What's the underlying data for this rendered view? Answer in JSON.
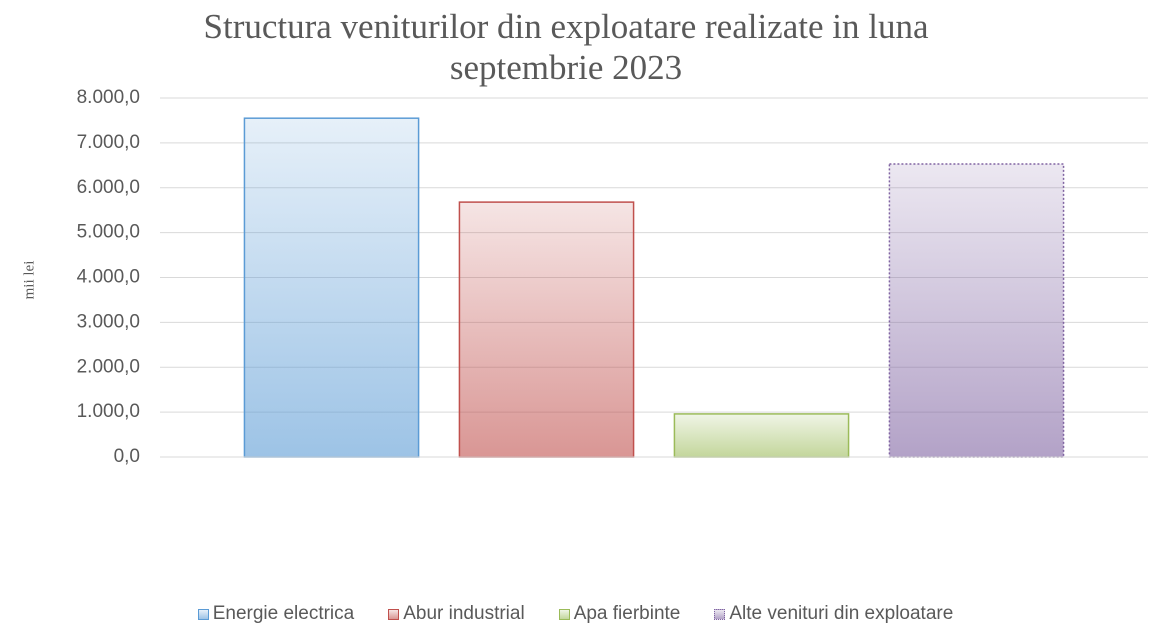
{
  "chart_data": {
    "type": "bar",
    "title": "Structura veniturilor din exploatare realizate in luna septembrie 2023",
    "y_label": "mii lei",
    "categories": [
      null
    ],
    "series": [
      {
        "name": "Energie electrica",
        "color": "#5b9bd5",
        "values": [
          7550
        ]
      },
      {
        "name": "Abur industrial",
        "color": "#c0504d",
        "values": [
          5680
        ]
      },
      {
        "name": "Apa fierbinte",
        "color": "#9bbb59",
        "values": [
          960
        ]
      },
      {
        "name": "Alte venituri din exploatare",
        "color": "#8064a2",
        "values": [
          6530
        ]
      }
    ],
    "ylim": [
      0,
      8000
    ],
    "yticks": [
      {
        "value": 0,
        "label": "0,0"
      },
      {
        "value": 1000,
        "label": "1.000,0"
      },
      {
        "value": 2000,
        "label": "2.000,0"
      },
      {
        "value": 3000,
        "label": "3.000,0"
      },
      {
        "value": 4000,
        "label": "4.000,0"
      },
      {
        "value": 5000,
        "label": "5.000,0"
      },
      {
        "value": 6000,
        "label": "6.000,0"
      },
      {
        "value": 7000,
        "label": "7.000,0"
      },
      {
        "value": 8000,
        "label": "8.000,0"
      }
    ],
    "grid": true,
    "legend": "bottom"
  }
}
